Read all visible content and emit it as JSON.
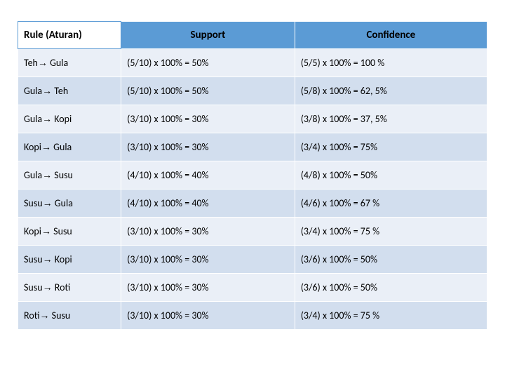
{
  "table": {
    "columns": [
      {
        "key": "rule",
        "label": "Rule (Aturan)",
        "align": "left",
        "header_bg": "#ffffff"
      },
      {
        "key": "support",
        "label": "Support",
        "align": "center",
        "header_bg": "#5b9bd5"
      },
      {
        "key": "confidence",
        "label": "Confidence",
        "align": "center",
        "header_bg": "#5b9bd5"
      }
    ],
    "rows": [
      {
        "rule_from": "Teh",
        "rule_to": "Gula",
        "support": "(5/10) x 100% = 50%",
        "confidence": "(5/5) x 100% = 100 %"
      },
      {
        "rule_from": "Gula",
        "rule_to": "Teh",
        "support": "(5/10) x 100% = 50%",
        "confidence": "(5/8) x 100% = 62, 5%"
      },
      {
        "rule_from": "Gula",
        "rule_to": "Kopi",
        "support": "(3/10) x 100% = 30%",
        "confidence": "(3/8) x 100% =  37, 5%"
      },
      {
        "rule_from": "Kopi",
        "rule_to": "Gula",
        "support": "(3/10) x 100% = 30%",
        "confidence": "(3/4) x 100% =  75%"
      },
      {
        "rule_from": "Gula",
        "rule_to": "Susu",
        "support": "(4/10) x 100% = 40%",
        "confidence": "(4/8) x 100% =  50%"
      },
      {
        "rule_from": "Susu",
        "rule_to": "Gula",
        "support": "(4/10) x 100% = 40%",
        "confidence": "(4/6) x 100% =  67 %"
      },
      {
        "rule_from": "Kopi",
        "rule_to": "Susu",
        "support": "(3/10) x 100% = 30%",
        "confidence": "(3/4) x 100% = 75 %"
      },
      {
        "rule_from": "Susu",
        "rule_to": "Kopi",
        "support": "(3/10) x 100% = 30%",
        "confidence": "(3/6) x 100% =  50%"
      },
      {
        "rule_from": "Susu",
        "rule_to": "Roti",
        "support": "(3/10) x 100% = 30%",
        "confidence": "(3/6) x 100% =  50%"
      },
      {
        "rule_from": "Roti",
        "rule_to": "Susu",
        "support": "(3/10) x 100% = 30%",
        "confidence": "(3/4) x 100% =  75 %"
      }
    ],
    "arrow_glyph": "→",
    "styling": {
      "header_bg": "#5b9bd5",
      "rule_header_bg": "#ffffff",
      "odd_row_bg": "#eaeff7",
      "even_row_bg": "#d2deee",
      "border_color": "#ffffff",
      "font_family": "Calibri",
      "header_fontsize": 15,
      "cell_fontsize": 14,
      "text_color": "#000000"
    }
  }
}
